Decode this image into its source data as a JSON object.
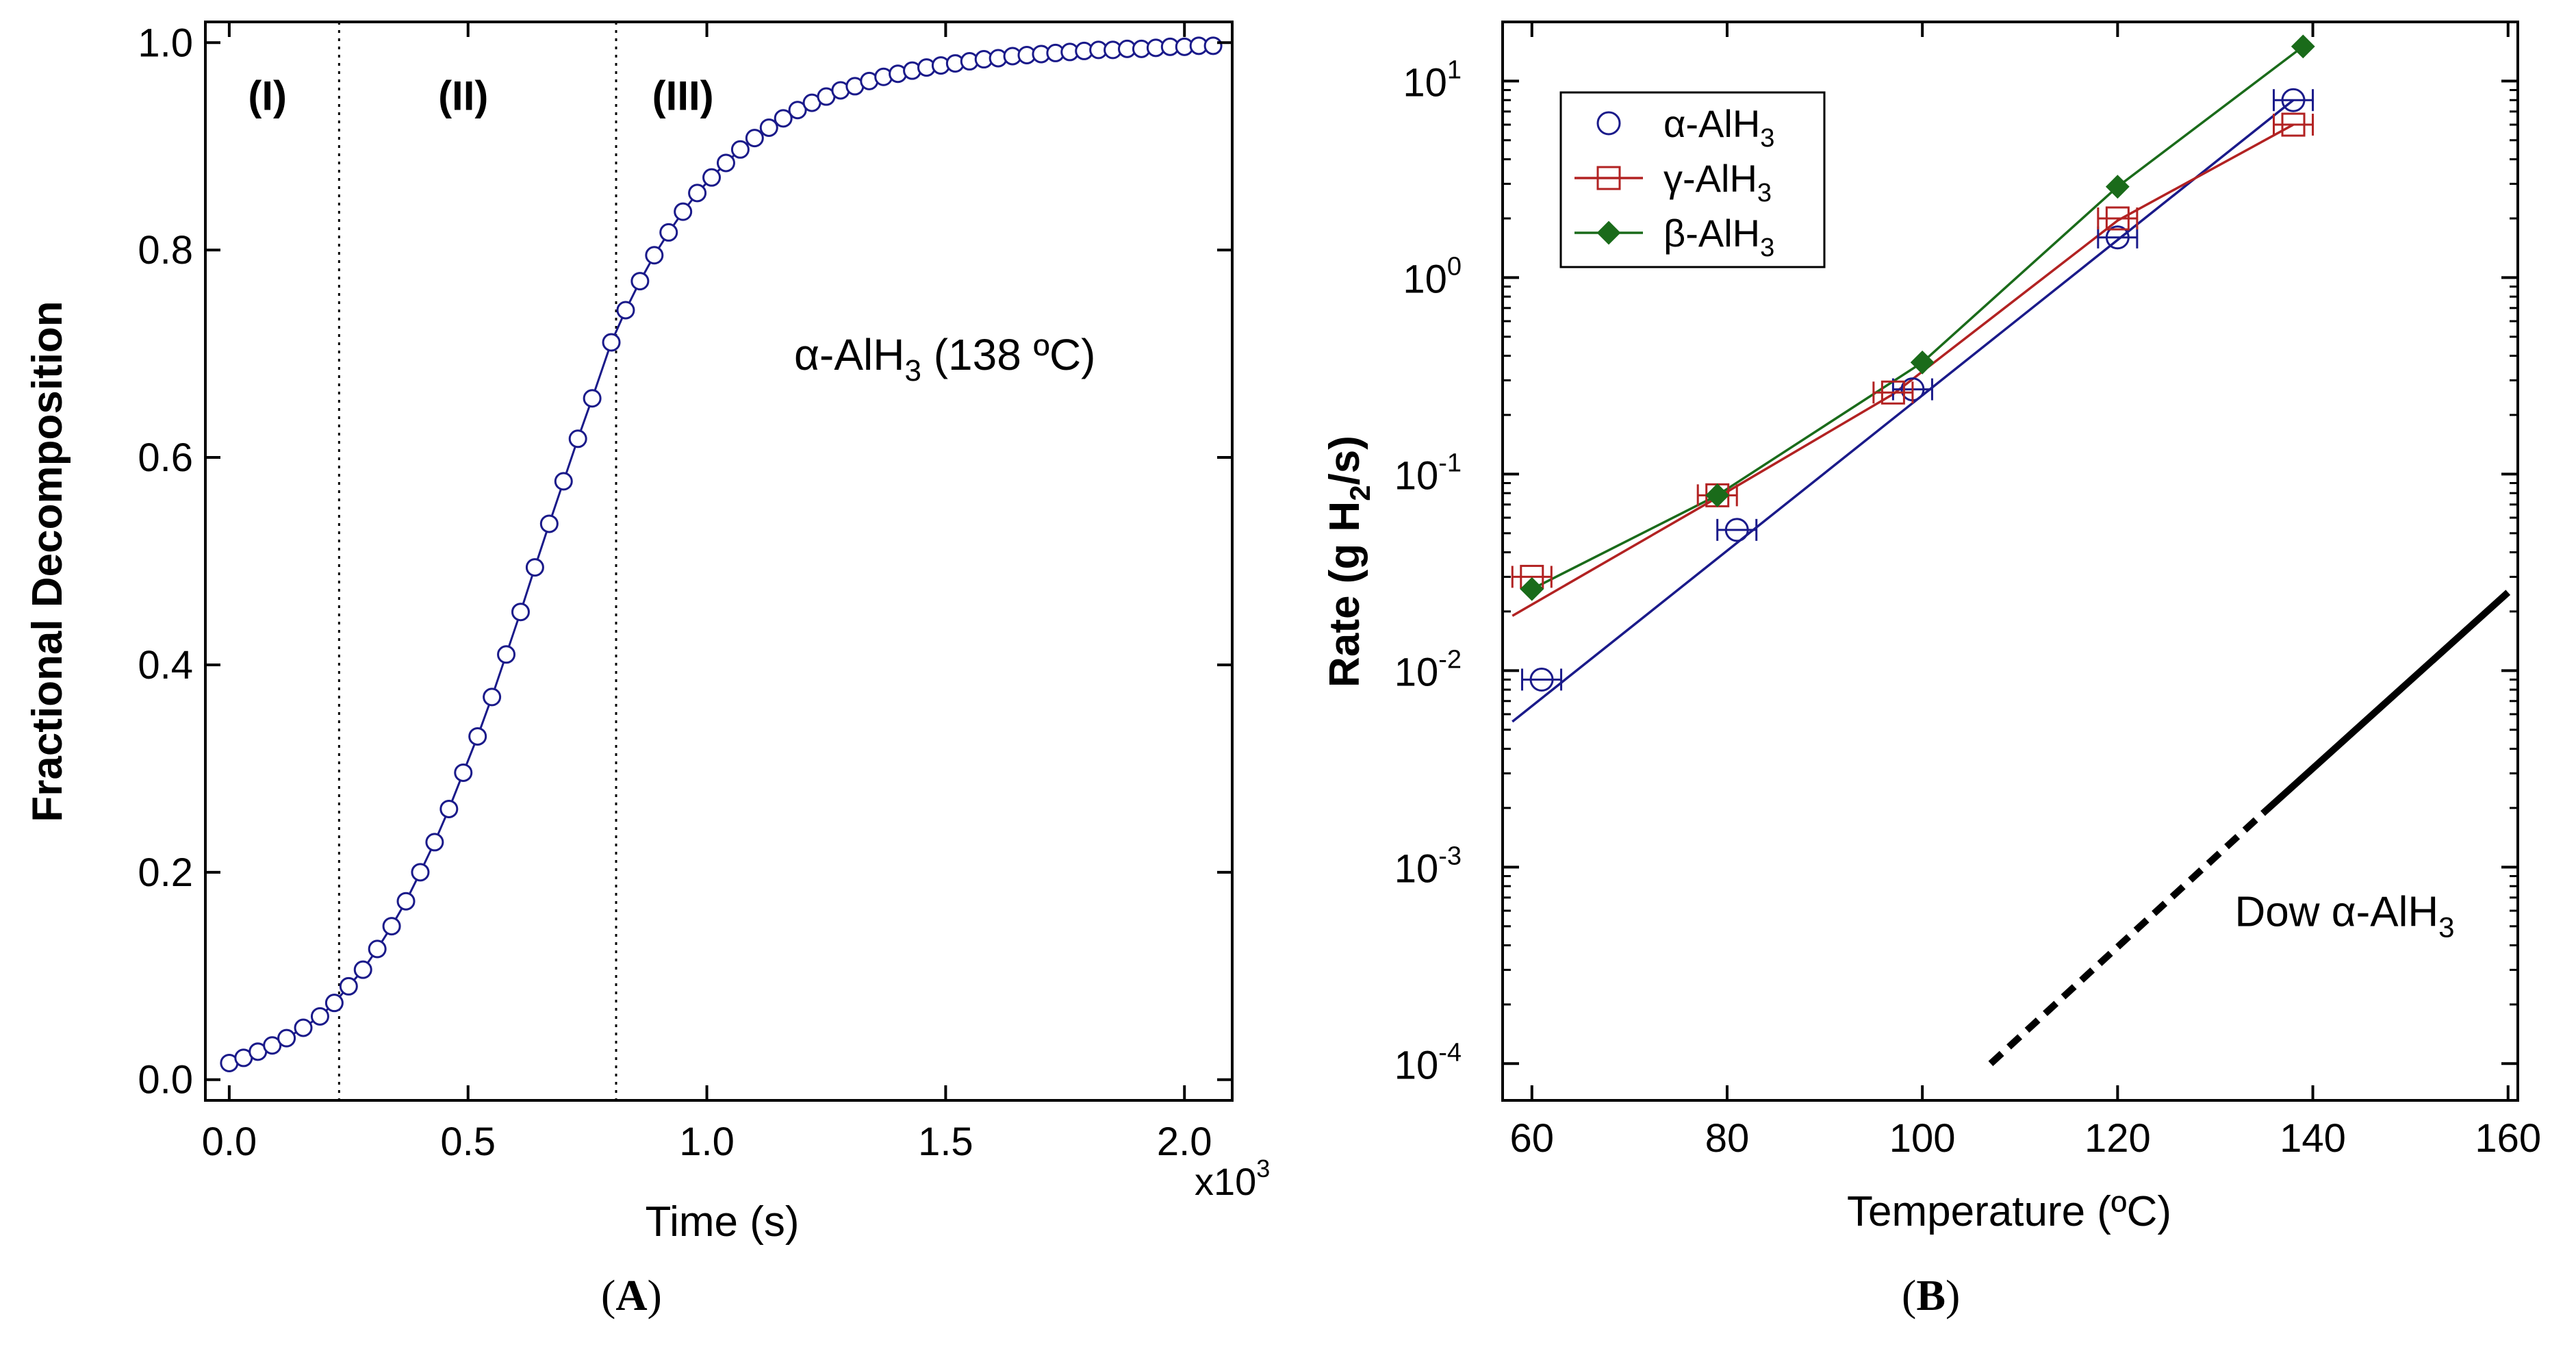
{
  "chart_data": [
    {
      "panel": "A",
      "type": "scatter",
      "xlabel": "Time (s)",
      "ylabel": "Fractional Decomposition",
      "xlim": [
        -0.05,
        2.1
      ],
      "ylim": [
        -0.02,
        1.02
      ],
      "x_scale_label": "x10",
      "x_scale_exp": "3",
      "xticks": [
        0.0,
        0.5,
        1.0,
        1.5,
        2.0
      ],
      "xtick_labels": [
        "0.0",
        "0.5",
        "1.0",
        "1.5",
        "2.0"
      ],
      "yticks": [
        0.0,
        0.2,
        0.4,
        0.6,
        0.8,
        1.0
      ],
      "ytick_labels": [
        "0.0",
        "0.2",
        "0.4",
        "0.6",
        "0.8",
        "1.0"
      ],
      "region_dividers_x": [
        0.23,
        0.81
      ],
      "regions": [
        {
          "label": "(I)",
          "x": 0.08,
          "y": 0.935
        },
        {
          "label": "(II)",
          "x": 0.49,
          "y": 0.935
        },
        {
          "label": "(III)",
          "x": 0.95,
          "y": 0.935
        }
      ],
      "annotation": {
        "prefix": "α-AlH",
        "sub": "3",
        "suffix": " (138 ºC)"
      },
      "series": [
        {
          "name": "α-AlH3 (138 ºC)",
          "color": "#1a1a8a",
          "marker": "circle",
          "x": [
            0.0,
            0.03,
            0.06,
            0.09,
            0.12,
            0.155,
            0.19,
            0.22,
            0.25,
            0.28,
            0.31,
            0.34,
            0.37,
            0.4,
            0.43,
            0.46,
            0.49,
            0.52,
            0.55,
            0.58,
            0.61,
            0.64,
            0.67,
            0.7,
            0.73,
            0.76,
            0.8,
            0.83,
            0.86,
            0.89,
            0.92,
            0.95,
            0.98,
            1.01,
            1.04,
            1.07,
            1.1,
            1.13,
            1.16,
            1.19,
            1.22,
            1.25,
            1.28,
            1.31,
            1.34,
            1.37,
            1.4,
            1.43,
            1.46,
            1.49,
            1.52,
            1.55,
            1.58,
            1.61,
            1.64,
            1.67,
            1.7,
            1.73,
            1.76,
            1.79,
            1.82,
            1.85,
            1.88,
            1.91,
            1.94,
            1.97,
            2.0,
            2.03,
            2.06
          ],
          "y": [
            0.016,
            0.021,
            0.027,
            0.033,
            0.04,
            0.05,
            0.061,
            0.074,
            0.09,
            0.106,
            0.126,
            0.148,
            0.172,
            0.2,
            0.229,
            0.261,
            0.296,
            0.331,
            0.369,
            0.41,
            0.451,
            0.494,
            0.536,
            0.577,
            0.618,
            0.657,
            0.711,
            0.742,
            0.77,
            0.795,
            0.817,
            0.837,
            0.855,
            0.87,
            0.884,
            0.897,
            0.908,
            0.918,
            0.927,
            0.935,
            0.942,
            0.948,
            0.954,
            0.958,
            0.963,
            0.967,
            0.97,
            0.973,
            0.976,
            0.978,
            0.98,
            0.982,
            0.984,
            0.985,
            0.987,
            0.988,
            0.989,
            0.99,
            0.991,
            0.992,
            0.993,
            0.993,
            0.994,
            0.994,
            0.995,
            0.996,
            0.996,
            0.997,
            0.997
          ]
        }
      ]
    },
    {
      "panel": "B",
      "type": "line",
      "xlabel": "Temperature (ºC)",
      "ylabel_prefix": "Rate (g H",
      "ylabel_sub": "2",
      "ylabel_suffix": "/s)",
      "xlim": [
        57,
        161
      ],
      "y_scale": "log",
      "ylim": [
        6.5e-05,
        20
      ],
      "xticks": [
        60,
        80,
        100,
        120,
        140,
        160
      ],
      "xtick_labels": [
        "60",
        "80",
        "100",
        "120",
        "140",
        "160"
      ],
      "yticks": [
        0.0001,
        0.001,
        0.01,
        0.1,
        1,
        10
      ],
      "ytick_exps": [
        "-4",
        "-3",
        "-2",
        "-1",
        "0",
        "1"
      ],
      "ytick_base": "10",
      "legend_position": "top-left",
      "legend": [
        {
          "prefix": "α-AlH",
          "sub": "3",
          "color": "#1a1a8a",
          "marker": "circle"
        },
        {
          "prefix": "γ-AlH",
          "sub": "3",
          "color": "#b22222",
          "marker": "square"
        },
        {
          "prefix": "β-AlH",
          "sub": "3",
          "color": "#1a6b1a",
          "marker": "diamond"
        }
      ],
      "series": [
        {
          "name": "α-AlH3",
          "color": "#1a1a8a",
          "marker": "circle",
          "x": [
            61,
            81,
            99,
            120,
            138
          ],
          "y": [
            0.009,
            0.052,
            0.27,
            1.6,
            8.0
          ],
          "x_err": [
            2,
            2,
            2,
            2,
            2
          ],
          "fit": {
            "x": [
              58,
              138
            ],
            "y": [
              0.0055,
              8.0
            ]
          }
        },
        {
          "name": "γ-AlH3",
          "color": "#b22222",
          "marker": "square",
          "x": [
            60,
            79,
            97,
            120,
            138
          ],
          "y": [
            0.03,
            0.078,
            0.26,
            2.0,
            6.0
          ],
          "x_err": [
            2,
            2,
            2,
            2,
            2
          ],
          "fit": {
            "x": [
              58,
              79,
              97,
              120,
              138
            ],
            "y": [
              0.019,
              0.076,
              0.255,
              1.95,
              6.0
            ]
          }
        },
        {
          "name": "β-AlH3",
          "color": "#1a6b1a",
          "marker": "diamond",
          "x": [
            60,
            79,
            100,
            120,
            139
          ],
          "y": [
            0.026,
            0.078,
            0.37,
            2.9,
            15.0
          ],
          "x_err": [],
          "fit": {
            "x": [
              60,
              79,
              100,
              120,
              139
            ],
            "y": [
              0.026,
              0.078,
              0.37,
              2.9,
              15.0
            ]
          }
        },
        {
          "name": "Dow α-AlH3",
          "color": "#000000",
          "dashed_x": [
            107,
            135
          ],
          "dashed_y": [
            0.0001,
            0.0019
          ],
          "solid_x": [
            135,
            160
          ],
          "solid_y": [
            0.0019,
            0.025
          ]
        }
      ],
      "annotation": {
        "prefix": "Dow  α-AlH",
        "sub": "3",
        "x": 132,
        "y": 0.0005
      }
    }
  ],
  "panel_labels": [
    "A",
    "B"
  ]
}
